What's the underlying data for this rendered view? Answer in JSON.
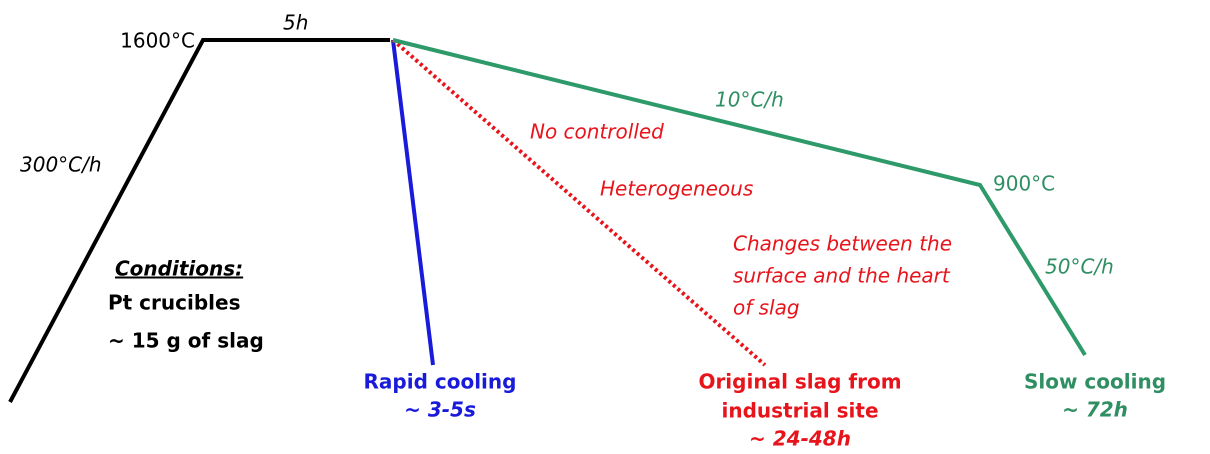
{
  "ramp": {
    "peak_temp": "1600°C",
    "hold": "5h",
    "heating_rate": "300°C/h"
  },
  "conditions": {
    "title": "Conditions:",
    "lines": [
      "Pt crucibles",
      "~ 15 g of slag"
    ]
  },
  "rapid": {
    "label": "Rapid cooling",
    "time": "~ 3-5s"
  },
  "original": {
    "notes": [
      "No controlled",
      "Heterogeneous",
      "Changes between the",
      "surface and the heart",
      "of slag"
    ],
    "label": [
      "Original slag from",
      "industrial site"
    ],
    "time": "~ 24-48h"
  },
  "slow": {
    "rate1": "10°C/h",
    "mid_temp": "900°C",
    "rate2": "50°C/h",
    "label": "Slow cooling",
    "time": "~ 72h"
  }
}
